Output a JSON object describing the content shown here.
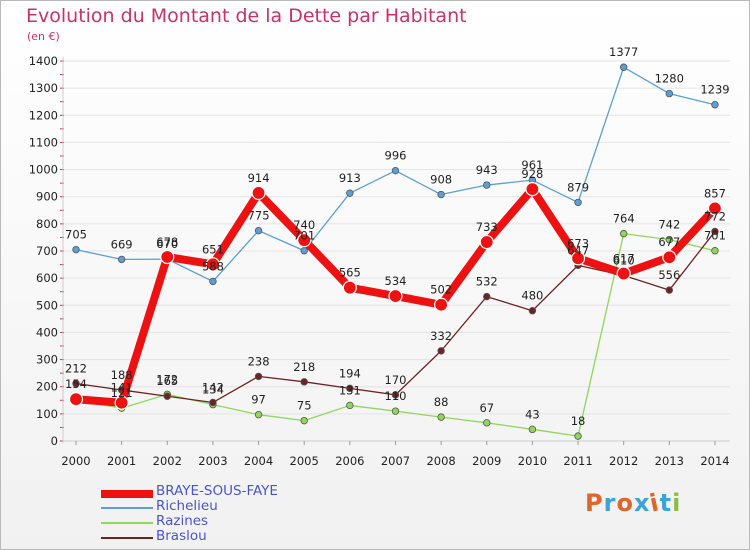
{
  "chart_data": {
    "type": "line",
    "title": "Evolution du Montant de la Dette par Habitant",
    "subtitle": "(en €)",
    "ylim": [
      0,
      1400
    ],
    "yticks": [
      0,
      100,
      200,
      300,
      400,
      500,
      600,
      700,
      800,
      900,
      1000,
      1100,
      1200,
      1300,
      1400
    ],
    "grid": true,
    "legend_position": "bottom-left",
    "x": [
      "2000",
      "2001",
      "2002",
      "2003",
      "2004",
      "2005",
      "2006",
      "2007",
      "2008",
      "2009",
      "2010",
      "2011",
      "2012",
      "2013",
      "2014"
    ],
    "series": [
      {
        "name": "BRAYE-SOUS-FAYE",
        "color": "#ee1111",
        "values": [
          154,
          141,
          678,
          651,
          914,
          740,
          565,
          534,
          502,
          733,
          928,
          673,
          617,
          677,
          857
        ],
        "labels": [
          "154",
          "141",
          "678",
          "651",
          "914",
          "740",
          "565",
          "534",
          "502",
          "733",
          "928",
          "673",
          "617",
          "677",
          "857"
        ]
      },
      {
        "name": "Richelieu",
        "color": "#5c9fd3",
        "values": [
          705,
          669,
          670,
          588,
          775,
          701,
          913,
          996,
          908,
          943,
          961,
          879,
          1377,
          1280,
          1239
        ],
        "labels": [
          "705",
          "669",
          "670",
          "588",
          "775",
          "701",
          "913",
          "996",
          "908",
          "943",
          "961",
          "879",
          "1377",
          "1280",
          "1239"
        ]
      },
      {
        "name": "Razines",
        "color": "#8fd65a",
        "values": [
          149,
          121,
          172,
          134,
          97,
          75,
          131,
          110,
          88,
          67,
          43,
          18,
          764,
          742,
          701
        ],
        "labels": [
          "",
          "121",
          "172",
          "134",
          "97",
          "75",
          "131",
          "110",
          "88",
          "67",
          "43",
          "18",
          "764",
          "742",
          "701"
        ]
      },
      {
        "name": "Braslou",
        "color": "#6e2323",
        "values": [
          212,
          188,
          165,
          142,
          238,
          218,
          194,
          170,
          332,
          532,
          480,
          647,
          610,
          556,
          772
        ],
        "labels": [
          "212",
          "188",
          "165",
          "142",
          "238",
          "218",
          "194",
          "170",
          "332",
          "532",
          "480",
          "647",
          "610",
          "556",
          "772"
        ]
      }
    ]
  },
  "logo_text": "Proxiti",
  "logo_colors": [
    "#e0652a",
    "#3aa3d8",
    "#e0652a",
    "#3aa3d8",
    "#e0652a",
    "#3aa3d8",
    "#8cbf3f"
  ]
}
